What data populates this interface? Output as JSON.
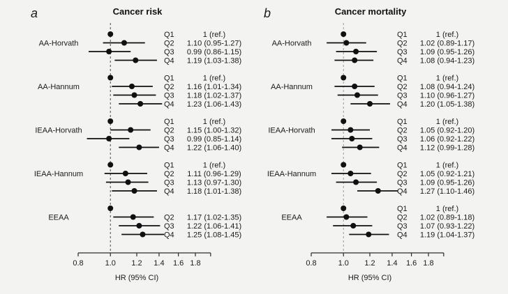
{
  "colors": {
    "background": "#f3f3f2",
    "text": "#1a1a1a",
    "axis": "#2a2a2a",
    "marker": "#101010",
    "refline_panel_a": "#474747",
    "refline_panel_b": "#9a9a9a"
  },
  "chart_data": [
    {
      "type": "forest",
      "panel_label": "a",
      "title": "Cancer risk",
      "xlabel": "HR (95% CI)",
      "xscale": "log",
      "refline": 1.0,
      "x_ticks": [
        0.8,
        1.0,
        1.2,
        1.4,
        1.6,
        1.8
      ],
      "x_tick_labels": [
        "0.8",
        "1.0",
        "1.2",
        "1.4",
        "1.6",
        "1.8"
      ],
      "x_range": [
        0.8,
        2.0
      ],
      "refline_color": "#474747",
      "groups": [
        {
          "name": "AA-Horvath",
          "rows": [
            {
              "q": "Q1",
              "hr": 1.0,
              "lo": null,
              "hi": null,
              "label": "1 (ref.)"
            },
            {
              "q": "Q2",
              "hr": 1.1,
              "lo": 0.95,
              "hi": 1.27,
              "label": "1.10 (0.95-1.27)"
            },
            {
              "q": "Q3",
              "hr": 0.99,
              "lo": 0.86,
              "hi": 1.15,
              "label": "0.99 (0.86-1.15)"
            },
            {
              "q": "Q4",
              "hr": 1.19,
              "lo": 1.03,
              "hi": 1.38,
              "label": "1.19 (1.03-1.38)"
            }
          ]
        },
        {
          "name": "AA-Hannum",
          "rows": [
            {
              "q": "Q1",
              "hr": 1.0,
              "lo": null,
              "hi": null,
              "label": "1 (ref.)"
            },
            {
              "q": "Q2",
              "hr": 1.16,
              "lo": 1.01,
              "hi": 1.34,
              "label": "1.16 (1.01-1.34)"
            },
            {
              "q": "Q3",
              "hr": 1.18,
              "lo": 1.02,
              "hi": 1.37,
              "label": "1.18 (1.02-1.37)"
            },
            {
              "q": "Q4",
              "hr": 1.23,
              "lo": 1.06,
              "hi": 1.43,
              "label": "1.23 (1.06-1.43)"
            }
          ]
        },
        {
          "name": "IEAA-Horvath",
          "rows": [
            {
              "q": "Q1",
              "hr": 1.0,
              "lo": null,
              "hi": null,
              "label": "1 (ref.)"
            },
            {
              "q": "Q2",
              "hr": 1.15,
              "lo": 1.0,
              "hi": 1.32,
              "label": "1.15 (1.00-1.32)"
            },
            {
              "q": "Q3",
              "hr": 0.99,
              "lo": 0.85,
              "hi": 1.14,
              "label": "0.99 (0.85-1.14)"
            },
            {
              "q": "Q4",
              "hr": 1.22,
              "lo": 1.06,
              "hi": 1.4,
              "label": "1.22 (1.06-1.40)"
            }
          ]
        },
        {
          "name": "IEAA-Hannum",
          "rows": [
            {
              "q": "Q1",
              "hr": 1.0,
              "lo": null,
              "hi": null,
              "label": "1 (ref.)"
            },
            {
              "q": "Q2",
              "hr": 1.11,
              "lo": 0.96,
              "hi": 1.29,
              "label": "1.11 (0.96-1.29)"
            },
            {
              "q": "Q3",
              "hr": 1.13,
              "lo": 0.97,
              "hi": 1.3,
              "label": "1.13 (0.97-1.30)"
            },
            {
              "q": "Q4",
              "hr": 1.18,
              "lo": 1.01,
              "hi": 1.38,
              "label": "1.18 (1.01-1.38)"
            }
          ]
        },
        {
          "name": "EEAA",
          "rows": [
            {
              "q": "",
              "hr": 1.0,
              "lo": null,
              "hi": null,
              "label": ""
            },
            {
              "q": "Q2",
              "hr": 1.17,
              "lo": 1.02,
              "hi": 1.35,
              "label": "1.17 (1.02-1.35)"
            },
            {
              "q": "Q3",
              "hr": 1.22,
              "lo": 1.06,
              "hi": 1.41,
              "label": "1.22 (1.06-1.41)"
            },
            {
              "q": "Q4",
              "hr": 1.25,
              "lo": 1.08,
              "hi": 1.45,
              "label": "1.25 (1.08-1.45)"
            }
          ]
        }
      ]
    },
    {
      "type": "forest",
      "panel_label": "b",
      "title": "Cancer mortality",
      "xlabel": "HR (95% CI)",
      "xscale": "log",
      "refline": 1.0,
      "x_ticks": [
        0.8,
        1.0,
        1.2,
        1.4,
        1.6,
        1.8
      ],
      "x_tick_labels": [
        "0.8",
        "1.0",
        "1.2",
        "1.4",
        "1.6",
        "1.8"
      ],
      "x_range": [
        0.8,
        2.0
      ],
      "refline_color": "#9a9a9a",
      "groups": [
        {
          "name": "AA-Horvath",
          "rows": [
            {
              "q": "Q1",
              "hr": 1.0,
              "lo": null,
              "hi": null,
              "label": "1 (ref.)"
            },
            {
              "q": "Q2",
              "hr": 1.02,
              "lo": 0.89,
              "hi": 1.17,
              "label": "1.02 (0.89-1.17)"
            },
            {
              "q": "Q3",
              "hr": 1.09,
              "lo": 0.95,
              "hi": 1.26,
              "label": "1.09 (0.95-1.26)"
            },
            {
              "q": "Q4",
              "hr": 1.08,
              "lo": 0.94,
              "hi": 1.23,
              "label": "1.08 (0.94-1.23)"
            }
          ]
        },
        {
          "name": "AA-Hannum",
          "rows": [
            {
              "q": "Q1",
              "hr": 1.0,
              "lo": null,
              "hi": null,
              "label": "1 (ref.)"
            },
            {
              "q": "Q2",
              "hr": 1.08,
              "lo": 0.94,
              "hi": 1.24,
              "label": "1.08 (0.94-1.24)"
            },
            {
              "q": "Q3",
              "hr": 1.1,
              "lo": 0.96,
              "hi": 1.27,
              "label": "1.10 (0.96-1.27)"
            },
            {
              "q": "Q4",
              "hr": 1.2,
              "lo": 1.05,
              "hi": 1.38,
              "label": "1.20 (1.05-1.38)"
            }
          ]
        },
        {
          "name": "IEAA-Horvath",
          "rows": [
            {
              "q": "Q1",
              "hr": 1.0,
              "lo": null,
              "hi": null,
              "label": "1 (ref.)"
            },
            {
              "q": "Q2",
              "hr": 1.05,
              "lo": 0.92,
              "hi": 1.2,
              "label": "1.05 (0.92-1.20)"
            },
            {
              "q": "Q3",
              "hr": 1.06,
              "lo": 0.92,
              "hi": 1.22,
              "label": "1.06 (0.92-1.22)"
            },
            {
              "q": "Q4",
              "hr": 1.12,
              "lo": 0.99,
              "hi": 1.28,
              "label": "1.12 (0.99-1.28)"
            }
          ]
        },
        {
          "name": "IEAA-Hannum",
          "rows": [
            {
              "q": "Q1",
              "hr": 1.0,
              "lo": null,
              "hi": null,
              "label": "1 (ref.)"
            },
            {
              "q": "Q2",
              "hr": 1.05,
              "lo": 0.92,
              "hi": 1.21,
              "label": "1.05 (0.92-1.21)"
            },
            {
              "q": "Q3",
              "hr": 1.09,
              "lo": 0.95,
              "hi": 1.26,
              "label": "1.09 (0.95-1.26)"
            },
            {
              "q": "Q4",
              "hr": 1.27,
              "lo": 1.1,
              "hi": 1.46,
              "label": "1.27 (1.10-1.46)"
            }
          ]
        },
        {
          "name": "EEAA",
          "rows": [
            {
              "q": "Q1",
              "hr": 1.0,
              "lo": null,
              "hi": null,
              "label": "1 (ref.)"
            },
            {
              "q": "Q2",
              "hr": 1.02,
              "lo": 0.89,
              "hi": 1.18,
              "label": "1.02 (0.89-1.18)"
            },
            {
              "q": "Q3",
              "hr": 1.07,
              "lo": 0.93,
              "hi": 1.22,
              "label": "1.07 (0.93-1.22)"
            },
            {
              "q": "Q4",
              "hr": 1.19,
              "lo": 1.04,
              "hi": 1.37,
              "label": "1.19 (1.04-1.37)"
            }
          ]
        }
      ]
    }
  ]
}
